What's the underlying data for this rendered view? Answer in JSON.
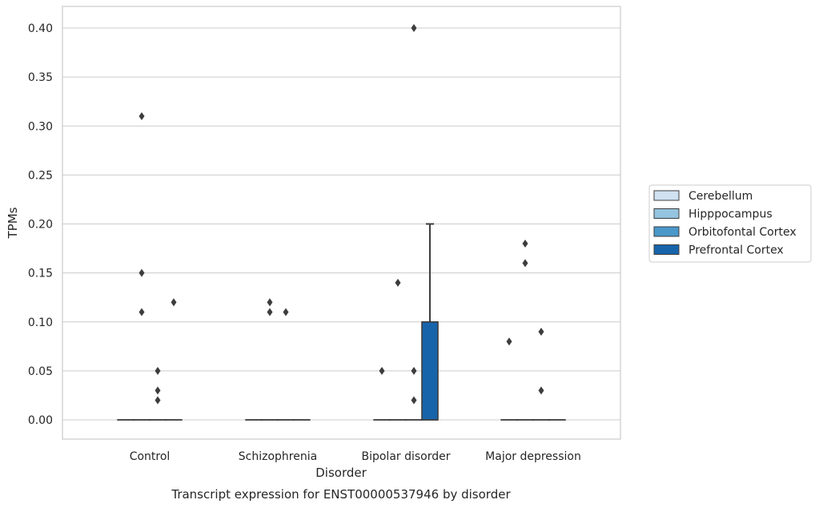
{
  "chart_data": {
    "type": "box",
    "xlabel": "Disorder",
    "ylabel": "TPMs",
    "caption": "Transcript expression for ENST00000537946 by disorder",
    "categories": [
      "Control",
      "Schizophrenia",
      "Bipolar disorder",
      "Major depression"
    ],
    "ylim": [
      -0.02,
      0.42
    ],
    "yticks": [
      "0.00",
      "0.05",
      "0.10",
      "0.15",
      "0.20",
      "0.25",
      "0.30",
      "0.35",
      "0.40"
    ],
    "grid": true,
    "legend_position": "right",
    "series": [
      {
        "name": "Cerebellum",
        "color": "#d0e1f2"
      },
      {
        "name": "Hipppocampus",
        "color": "#94c4df"
      },
      {
        "name": "Orbitofontal Cortex",
        "color": "#4a98c9"
      },
      {
        "name": "Prefrontal Cortex",
        "color": "#1764ab"
      }
    ],
    "boxes": [
      {
        "category": 0,
        "series": 0,
        "q1": 0,
        "median": 0,
        "q3": 0,
        "whisker_low": 0,
        "whisker_high": 0,
        "outliers": []
      },
      {
        "category": 0,
        "series": 1,
        "q1": 0,
        "median": 0,
        "q3": 0,
        "whisker_low": 0,
        "whisker_high": 0,
        "outliers": [
          0.31,
          0.15,
          0.11
        ]
      },
      {
        "category": 0,
        "series": 2,
        "q1": 0,
        "median": 0,
        "q3": 0,
        "whisker_low": 0,
        "whisker_high": 0,
        "outliers": [
          0.05,
          0.03,
          0.02
        ]
      },
      {
        "category": 0,
        "series": 3,
        "q1": 0,
        "median": 0,
        "q3": 0,
        "whisker_low": 0,
        "whisker_high": 0,
        "outliers": [
          0.12
        ]
      },
      {
        "category": 1,
        "series": 0,
        "q1": 0,
        "median": 0,
        "q3": 0,
        "whisker_low": 0,
        "whisker_high": 0,
        "outliers": []
      },
      {
        "category": 1,
        "series": 1,
        "q1": 0,
        "median": 0,
        "q3": 0,
        "whisker_low": 0,
        "whisker_high": 0,
        "outliers": [
          0.12,
          0.11
        ]
      },
      {
        "category": 1,
        "series": 2,
        "q1": 0,
        "median": 0,
        "q3": 0,
        "whisker_low": 0,
        "whisker_high": 0,
        "outliers": [
          0.11
        ]
      },
      {
        "category": 1,
        "series": 3,
        "q1": 0,
        "median": 0,
        "q3": 0,
        "whisker_low": 0,
        "whisker_high": 0,
        "outliers": []
      },
      {
        "category": 2,
        "series": 0,
        "q1": 0,
        "median": 0,
        "q3": 0,
        "whisker_low": 0,
        "whisker_high": 0,
        "outliers": [
          0.05
        ]
      },
      {
        "category": 2,
        "series": 1,
        "q1": 0,
        "median": 0,
        "q3": 0,
        "whisker_low": 0,
        "whisker_high": 0,
        "outliers": [
          0.14
        ]
      },
      {
        "category": 2,
        "series": 2,
        "q1": 0,
        "median": 0,
        "q3": 0,
        "whisker_low": 0,
        "whisker_high": 0,
        "outliers": [
          0.4,
          0.05,
          0.02
        ]
      },
      {
        "category": 2,
        "series": 3,
        "q1": 0,
        "median": 0,
        "q3": 0.1,
        "whisker_low": 0,
        "whisker_high": 0.2,
        "outliers": []
      },
      {
        "category": 3,
        "series": 0,
        "q1": 0,
        "median": 0,
        "q3": 0,
        "whisker_low": 0,
        "whisker_high": 0,
        "outliers": [
          0.08
        ]
      },
      {
        "category": 3,
        "series": 1,
        "q1": 0,
        "median": 0,
        "q3": 0,
        "whisker_low": 0,
        "whisker_high": 0,
        "outliers": [
          0.18,
          0.16
        ]
      },
      {
        "category": 3,
        "series": 2,
        "q1": 0,
        "median": 0,
        "q3": 0,
        "whisker_low": 0,
        "whisker_high": 0,
        "outliers": [
          0.09,
          0.03
        ]
      },
      {
        "category": 3,
        "series": 3,
        "q1": 0,
        "median": 0,
        "q3": 0,
        "whisker_low": 0,
        "whisker_high": 0,
        "outliers": []
      }
    ]
  }
}
